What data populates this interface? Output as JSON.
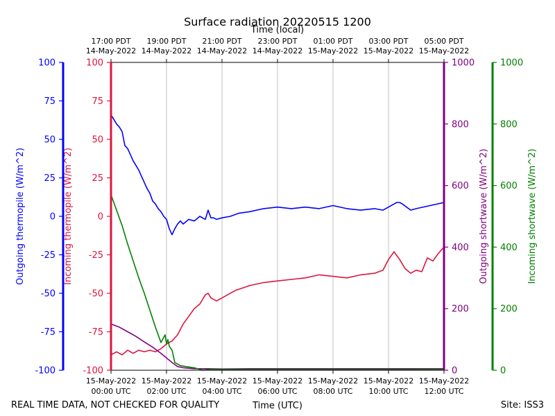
{
  "chart_data": {
    "type": "line",
    "title": "Surface radiation 20220515 1200",
    "top_axis_label": "Time (local)",
    "xlabel": "Time (UTC)",
    "footer_left": "REAL TIME DATA, NOT CHECKED FOR QUALITY",
    "footer_right": "Site: ISS3",
    "x_range_hours": [
      0,
      12
    ],
    "top_ticks": [
      {
        "hour": 0,
        "line1": "17:00 PDT",
        "line2": "14-May-2022"
      },
      {
        "hour": 2,
        "line1": "19:00 PDT",
        "line2": "14-May-2022"
      },
      {
        "hour": 4,
        "line1": "21:00 PDT",
        "line2": "14-May-2022"
      },
      {
        "hour": 6,
        "line1": "23:00 PDT",
        "line2": "14-May-2022"
      },
      {
        "hour": 8,
        "line1": "01:00 PDT",
        "line2": "15-May-2022"
      },
      {
        "hour": 10,
        "line1": "03:00 PDT",
        "line2": "15-May-2022"
      },
      {
        "hour": 12,
        "line1": "05:00 PDT",
        "line2": "15-May-2022"
      }
    ],
    "bottom_ticks": [
      {
        "hour": 0,
        "line1": "15-May-2022",
        "line2": "00:00 UTC"
      },
      {
        "hour": 2,
        "line1": "15-May-2022",
        "line2": "02:00 UTC"
      },
      {
        "hour": 4,
        "line1": "15-May-2022",
        "line2": "04:00 UTC"
      },
      {
        "hour": 6,
        "line1": "15-May-2022",
        "line2": "06:00 UTC"
      },
      {
        "hour": 8,
        "line1": "15-May-2022",
        "line2": "08:00 UTC"
      },
      {
        "hour": 10,
        "line1": "15-May-2022",
        "line2": "10:00 UTC"
      },
      {
        "hour": 12,
        "line1": "15-May-2022",
        "line2": "12:00 UTC"
      }
    ],
    "axes": {
      "outgoing_thermopile": {
        "label": "Outgoing thermopile (W/m^2)",
        "color": "#0000ff",
        "range": [
          -100,
          100
        ],
        "ticks": [
          -100,
          -75,
          -50,
          -25,
          0,
          25,
          50,
          75,
          100
        ]
      },
      "incoming_thermopile": {
        "label": "Incoming thermopile (W/m^2)",
        "color": "#dc143c",
        "range": [
          -100,
          100
        ],
        "ticks": [
          -100,
          -75,
          -50,
          -25,
          0,
          25,
          50,
          75,
          100
        ]
      },
      "outgoing_shortwave": {
        "label": "Outgoing shortwave (W/m^2)",
        "color": "#800080",
        "range": [
          0,
          1000
        ],
        "ticks": [
          0,
          200,
          400,
          600,
          800,
          1000
        ]
      },
      "incoming_shortwave": {
        "label": "Incoming shortwave (W/m^2)",
        "color": "#008000",
        "range": [
          0,
          1000
        ],
        "ticks": [
          0,
          200,
          400,
          600,
          800,
          1000
        ]
      }
    },
    "series": [
      {
        "name": "Outgoing thermopile",
        "axis": "outgoing_thermopile",
        "color": "#0000ff",
        "x": [
          0,
          0.1,
          0.2,
          0.3,
          0.4,
          0.5,
          0.6,
          0.7,
          0.8,
          0.9,
          1.0,
          1.1,
          1.2,
          1.3,
          1.4,
          1.5,
          1.6,
          1.7,
          1.8,
          1.9,
          2.0,
          2.1,
          2.2,
          2.3,
          2.4,
          2.5,
          2.6,
          2.8,
          3.0,
          3.2,
          3.4,
          3.5,
          3.6,
          3.7,
          3.8,
          4.0,
          4.3,
          4.6,
          5.0,
          5.5,
          6.0,
          6.5,
          7.0,
          7.5,
          8.0,
          8.5,
          9.0,
          9.5,
          9.8,
          10.0,
          10.2,
          10.3,
          10.4,
          10.5,
          10.8,
          11.0,
          11.5,
          12.0
        ],
        "y": [
          66,
          63,
          60,
          58,
          55,
          46,
          44,
          40,
          36,
          33,
          30,
          26,
          22,
          18,
          15,
          10,
          8,
          5,
          3,
          0,
          -2,
          -8,
          -12,
          -8,
          -5,
          -3,
          -5,
          -2,
          -3,
          0,
          -2,
          4,
          -1,
          -1,
          -2,
          -1,
          0,
          2,
          3,
          5,
          6,
          5,
          6,
          5,
          7,
          5,
          4,
          5,
          4,
          6,
          8,
          9,
          9,
          8,
          4,
          5,
          7,
          9
        ]
      },
      {
        "name": "Incoming thermopile",
        "axis": "incoming_thermopile",
        "color": "#dc143c",
        "x": [
          0,
          0.2,
          0.4,
          0.6,
          0.8,
          1.0,
          1.2,
          1.4,
          1.6,
          1.8,
          2.0,
          2.2,
          2.4,
          2.6,
          2.8,
          3.0,
          3.2,
          3.4,
          3.5,
          3.6,
          3.8,
          4.0,
          4.2,
          4.5,
          5.0,
          5.5,
          6.0,
          6.5,
          7.0,
          7.5,
          8.0,
          8.5,
          9.0,
          9.5,
          9.8,
          10.0,
          10.2,
          10.4,
          10.6,
          10.8,
          11.0,
          11.2,
          11.4,
          11.6,
          11.8,
          12.0
        ],
        "y": [
          -90,
          -88,
          -90,
          -87,
          -89,
          -87,
          -88,
          -87,
          -88,
          -86,
          -83,
          -81,
          -77,
          -70,
          -65,
          -60,
          -57,
          -51,
          -50,
          -53,
          -55,
          -53,
          -51,
          -48,
          -45,
          -43,
          -42,
          -41,
          -40,
          -38,
          -39,
          -40,
          -38,
          -37,
          -35,
          -28,
          -23,
          -28,
          -34,
          -37,
          -35,
          -36,
          -27,
          -29,
          -24,
          -20
        ]
      },
      {
        "name": "Outgoing shortwave",
        "axis": "outgoing_shortwave",
        "color": "#800080",
        "x": [
          0,
          0.3,
          0.6,
          0.9,
          1.2,
          1.5,
          1.8,
          2.0,
          2.2,
          2.4,
          2.6,
          3.0,
          3.5,
          4.0,
          5.0,
          6.0,
          7.0,
          8.0,
          9.0,
          10.0,
          11.0,
          12.0
        ],
        "y": [
          150,
          140,
          125,
          110,
          92,
          75,
          55,
          40,
          25,
          12,
          8,
          5,
          5,
          4,
          5,
          5,
          5,
          5,
          5,
          5,
          5,
          5
        ]
      },
      {
        "name": "Incoming shortwave",
        "axis": "incoming_shortwave",
        "color": "#008000",
        "x": [
          0,
          0.2,
          0.4,
          0.6,
          0.8,
          1.0,
          1.2,
          1.4,
          1.6,
          1.8,
          1.95,
          2.0,
          2.05,
          2.1,
          2.2,
          2.3,
          2.5,
          2.7,
          3.0,
          3.3,
          3.6,
          4.0,
          5.0,
          6.0,
          7.0,
          8.0,
          9.0,
          10.0,
          11.0,
          12.0
        ],
        "y": [
          570,
          520,
          470,
          410,
          355,
          300,
          250,
          195,
          140,
          90,
          115,
          85,
          100,
          78,
          65,
          25,
          15,
          12,
          8,
          0,
          3,
          2,
          2,
          2,
          2,
          2,
          2,
          2,
          2,
          3
        ]
      }
    ]
  }
}
